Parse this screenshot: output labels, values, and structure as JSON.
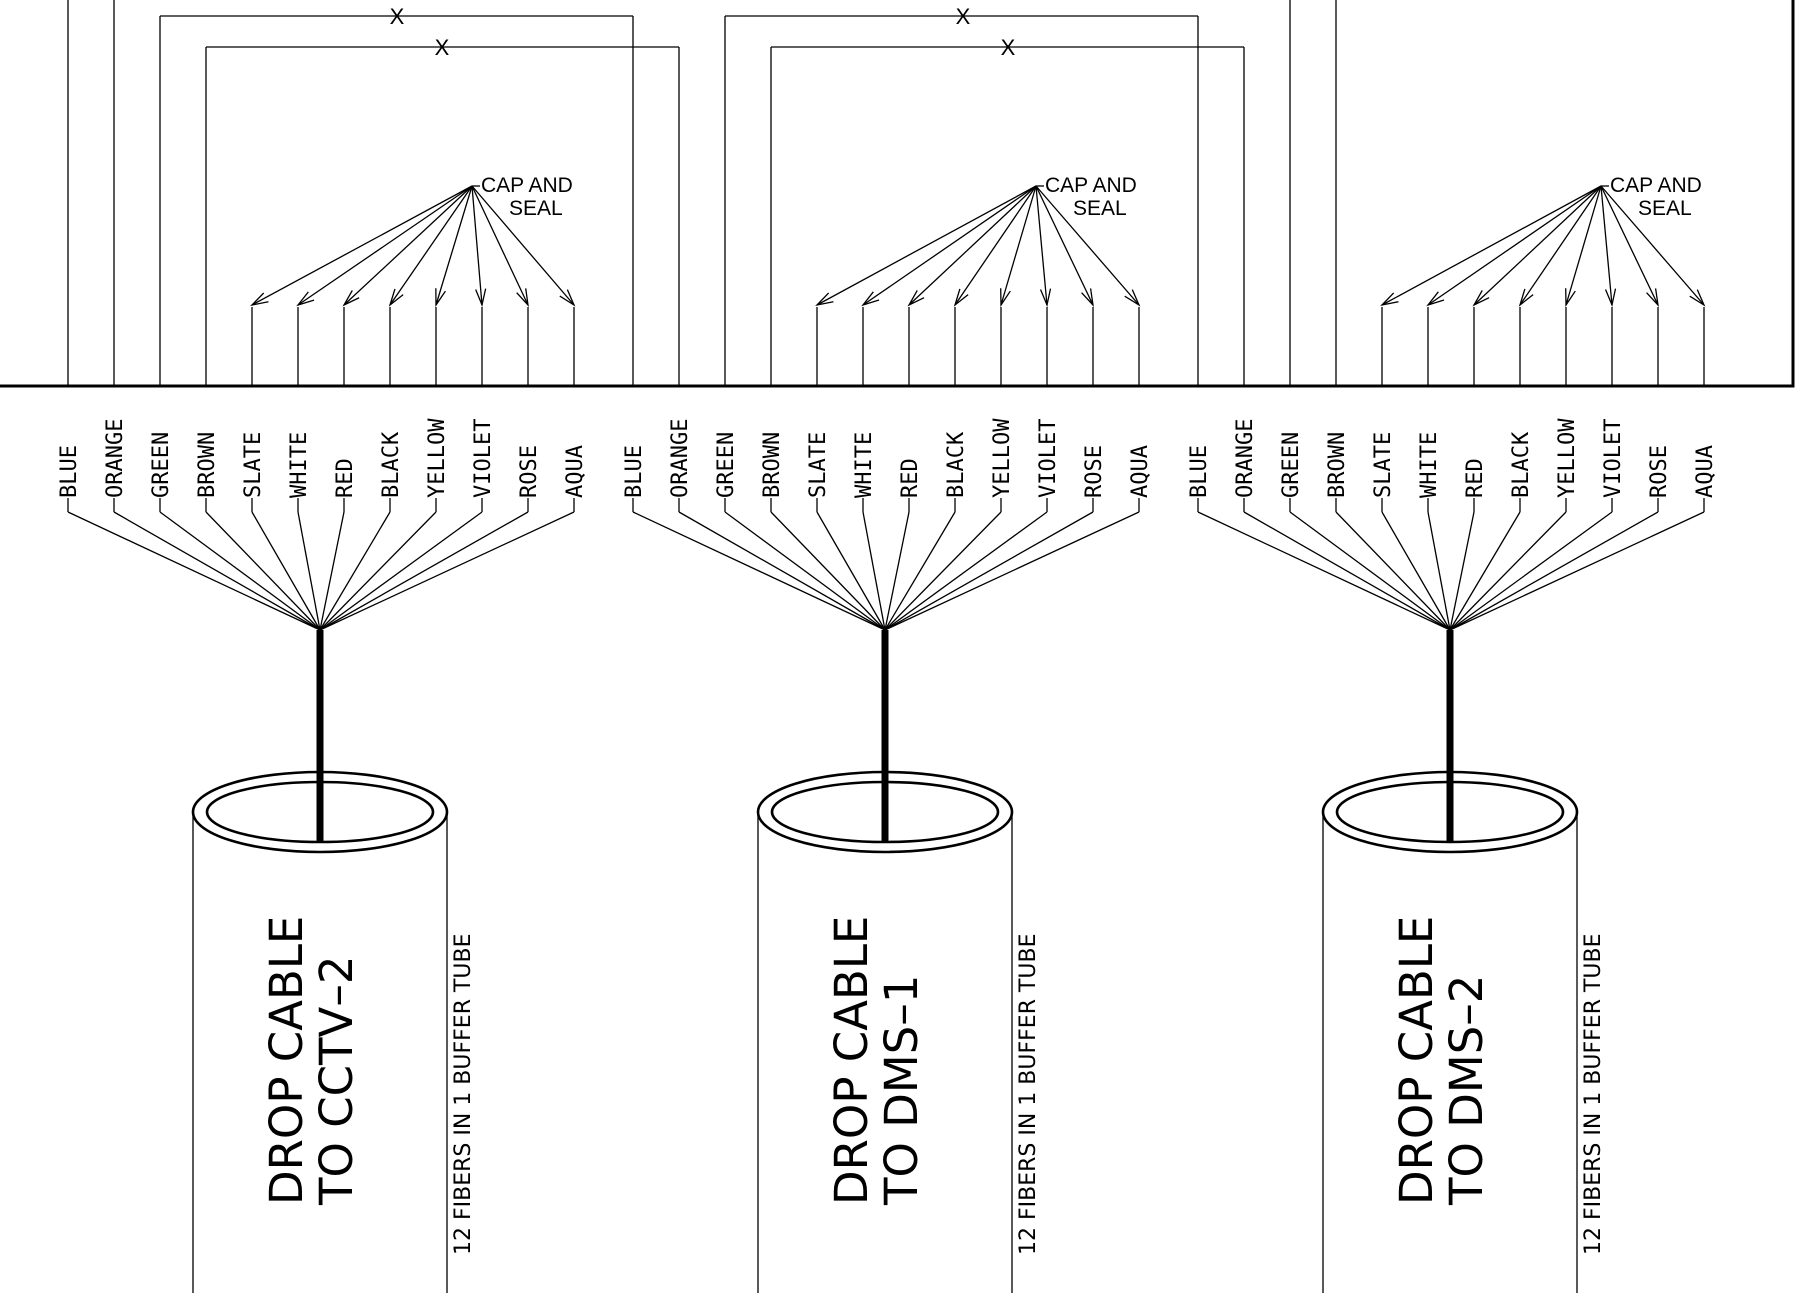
{
  "fiber_colours": [
    "BLUE",
    "ORANGE",
    "GREEN",
    "BROWN",
    "SLATE",
    "WHITE",
    "RED",
    "BLACK",
    "YELLOW",
    "VIOLET",
    "ROSE",
    "AQUA"
  ],
  "cap_label": [
    "CAP AND",
    "SEAL"
  ],
  "cross_mark": "X",
  "fiber_note": "12 FIBERS IN 1 BUFFER TUBE",
  "cables": [
    {
      "name_line1": "DROP CABLE",
      "name_line2": "TO  CCTV–2"
    },
    {
      "name_line1": "DROP CABLE",
      "name_line2": "TO  DMS–1"
    },
    {
      "name_line1": "DROP CABLE",
      "name_line2": "TO  DMS–2"
    }
  ]
}
